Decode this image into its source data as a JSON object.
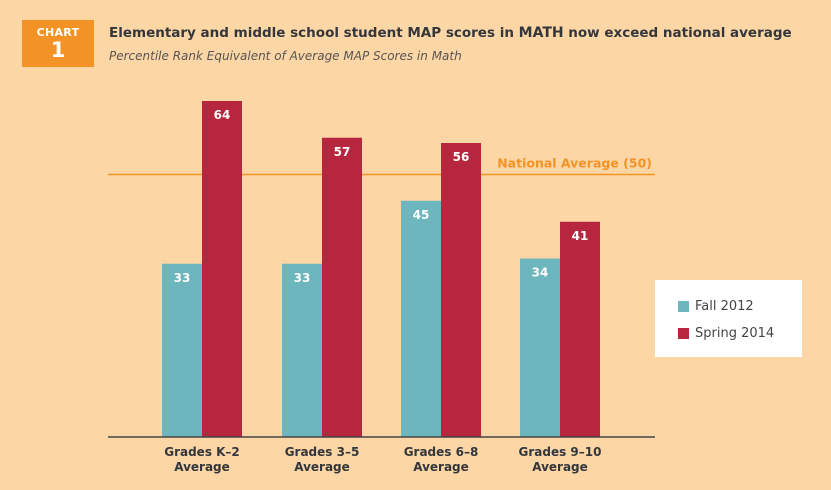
{
  "badge": {
    "label": "CHART",
    "number": "1"
  },
  "chart_data": {
    "type": "bar",
    "title_parts": [
      "Elementary and middle school student MAP scores in ",
      "MATH",
      " now exceed national average"
    ],
    "subtitle": "Percentile Rank Equivalent of Average MAP Scores in Math",
    "categories": [
      [
        "Grades K–2",
        "Average"
      ],
      [
        "Grades 3–5",
        "Average"
      ],
      [
        "Grades 6–8",
        "Average"
      ],
      [
        "Grades 9–10",
        "Average"
      ]
    ],
    "series": [
      {
        "name": "Fall 2012",
        "color": "#6DB6BE",
        "values": [
          33,
          33,
          45,
          34
        ]
      },
      {
        "name": "Spring 2014",
        "color": "#B7263F",
        "values": [
          64,
          57,
          56,
          41
        ]
      }
    ],
    "reference_line": {
      "label": "National Average (50)",
      "value": 50,
      "color": "#F39325"
    },
    "ylim": [
      0,
      64
    ],
    "grid": false,
    "legend_position": "right"
  }
}
